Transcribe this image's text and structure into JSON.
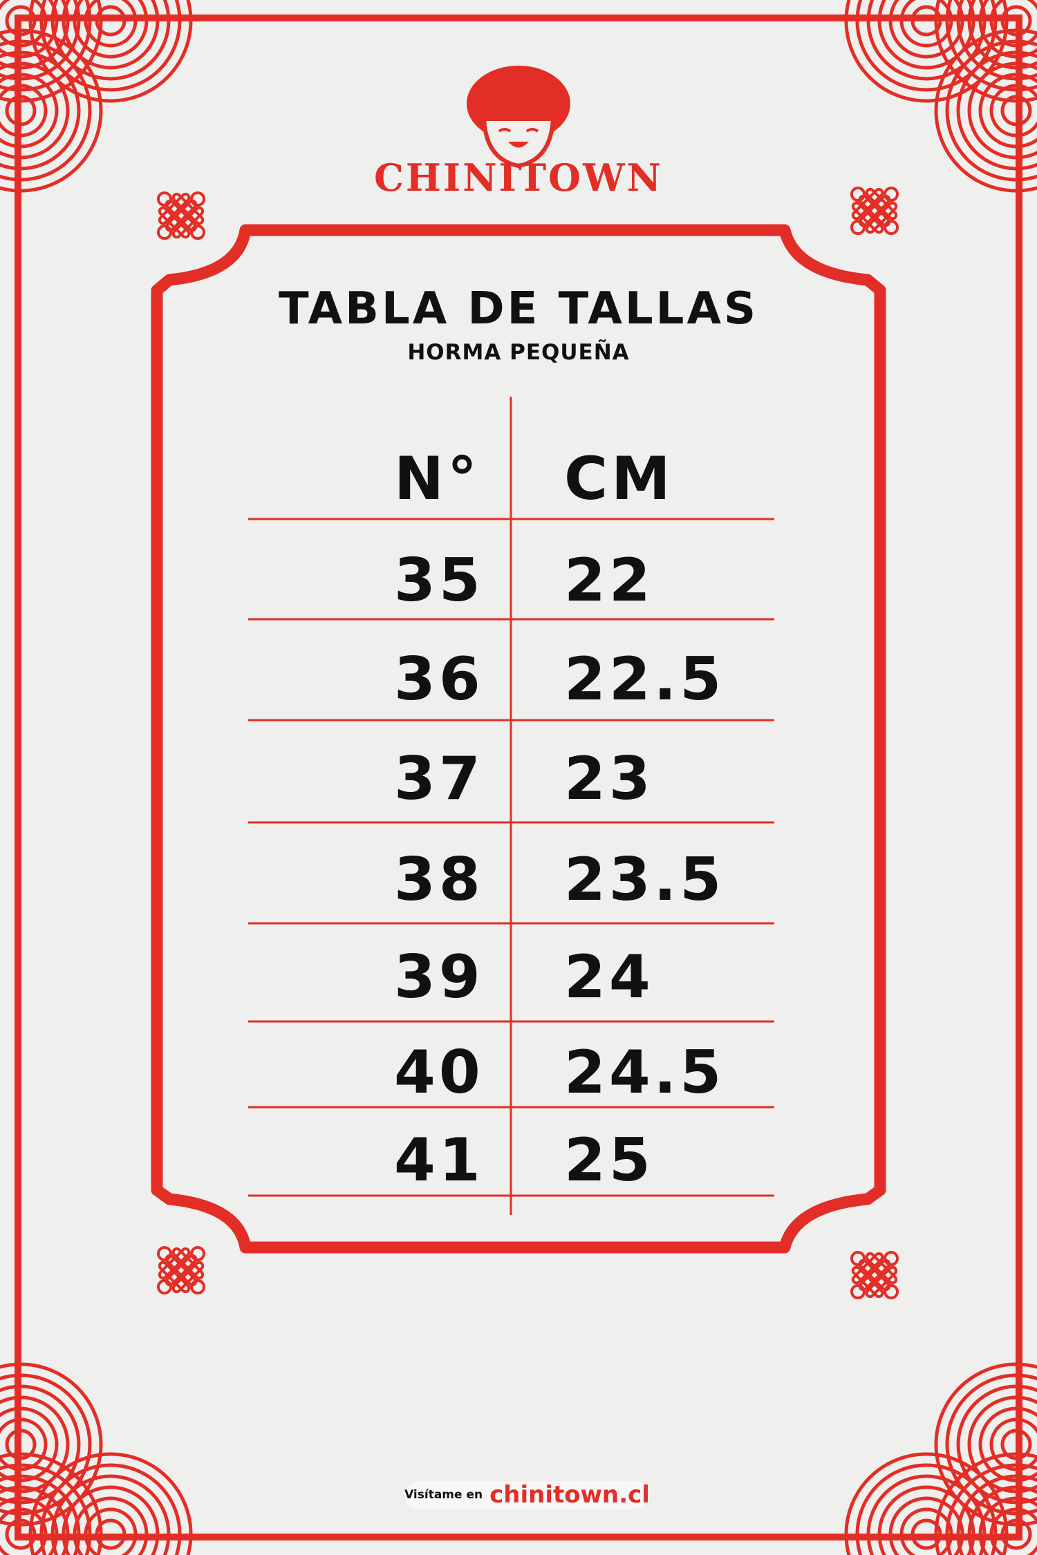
{
  "brand": {
    "name": "CHINITOWN",
    "color": "#e22e26"
  },
  "title": "TABLA DE TALLAS",
  "subtitle": "HORMA PEQUEÑA",
  "table": {
    "headers": [
      "N°",
      "CM"
    ],
    "rows": [
      [
        "35",
        "22"
      ],
      [
        "36",
        "22.5"
      ],
      [
        "37",
        "23"
      ],
      [
        "38",
        "23.5"
      ],
      [
        "39",
        "24"
      ],
      [
        "40",
        "24.5"
      ],
      [
        "41",
        "25"
      ]
    ]
  },
  "footer": {
    "prefix": "Visítame en",
    "link": "chinitown.cl"
  },
  "colors": {
    "accent": "#e22e26",
    "background": "#efefee",
    "text": "#111111"
  }
}
